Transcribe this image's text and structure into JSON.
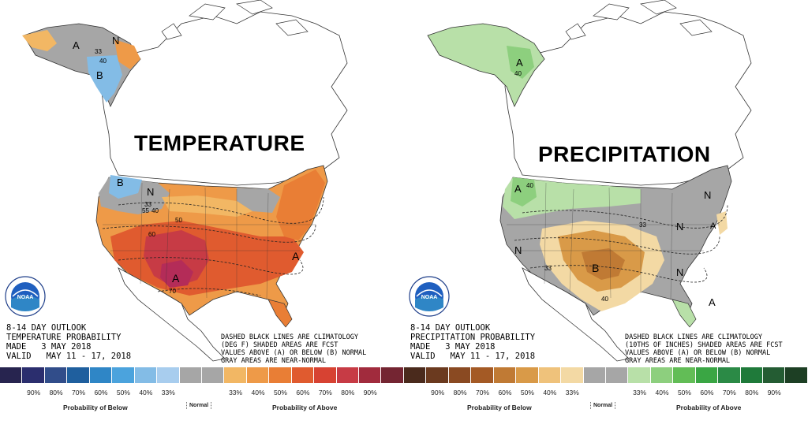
{
  "temperature": {
    "title": "TEMPERATURE",
    "outlook_lines": [
      "8-14 DAY OUTLOOK",
      "TEMPERATURE PROBABILITY",
      "MADE   3 MAY 2018",
      "VALID   MAY 11 - 17, 2018"
    ],
    "note_lines": [
      "DASHED BLACK LINES ARE CLIMATOLOGY",
      "(DEG F) SHADED AREAS ARE FCST",
      "VALUES ABOVE (A) OR BELOW (B) NORMAL",
      "GRAY AREAS ARE NEAR-NORMAL"
    ],
    "legend_colors": [
      "#27244f",
      "#2b2e6e",
      "#314d8a",
      "#1f5f9e",
      "#2f86c6",
      "#4ba3dd",
      "#83bce6",
      "#a8cdee",
      "#a6a6a6",
      "#a6a6a6",
      "#f2b764",
      "#ee9a48",
      "#e97e35",
      "#e05b2f",
      "#d74232",
      "#c73b45",
      "#a12b3d",
      "#742532"
    ],
    "legend_ticks": [
      "90%",
      "80%",
      "70%",
      "60%",
      "50%",
      "40%",
      "33%",
      "33%",
      "40%",
      "50%",
      "60%",
      "70%",
      "80%",
      "90%"
    ],
    "below_label": "Probability of Below",
    "normal_label": "Normal",
    "above_label": "Probability of Above",
    "map_labels": [
      "A",
      "N",
      "B",
      "B",
      "N",
      "A",
      "A",
      "33",
      "40",
      "50",
      "55",
      "60",
      "70",
      "40"
    ]
  },
  "precipitation": {
    "title": "PRECIPITATION",
    "outlook_lines": [
      "8-14 DAY OUTLOOK",
      "PRECIPITATION PROBABILITY",
      "MADE   3 MAY 2018",
      "VALID   MAY 11 - 17, 2018"
    ],
    "note_lines": [
      "DASHED BLACK LINES ARE CLIMATOLOGY",
      "(10THS OF INCHES) SHADED AREAS ARE FCST",
      "VALUES ABOVE (A) OR BELOW (B) NORMAL",
      "GRAY AREAS ARE NEAR-NORMAL"
    ],
    "legend_colors": [
      "#4a2a1c",
      "#6b3a1f",
      "#8a4a22",
      "#a45a25",
      "#c07a34",
      "#d99a48",
      "#efc27b",
      "#f3d9a4",
      "#a6a6a6",
      "#a6a6a6",
      "#b8e0a8",
      "#8dcf7e",
      "#62bd56",
      "#3aa644",
      "#2b8a46",
      "#1f7a3a",
      "#245c33",
      "#1d3f24"
    ],
    "legend_ticks": [
      "90%",
      "80%",
      "70%",
      "60%",
      "50%",
      "40%",
      "33%",
      "33%",
      "40%",
      "50%",
      "60%",
      "70%",
      "80%",
      "90%"
    ],
    "below_label": "Probability of Below",
    "normal_label": "Normal",
    "above_label": "Probability of Above",
    "map_labels": [
      "A",
      "A",
      "N",
      "N",
      "N",
      "B",
      "N",
      "A",
      "A",
      "40",
      "40",
      "40",
      "33",
      "33"
    ]
  },
  "colors": {
    "gray_normal": "#a6a6a6",
    "land": "#ffffff",
    "water": "#ffffff",
    "border": "#333333"
  },
  "logo": {
    "text": "NOAA",
    "icon": "noaa-logo-icon"
  }
}
